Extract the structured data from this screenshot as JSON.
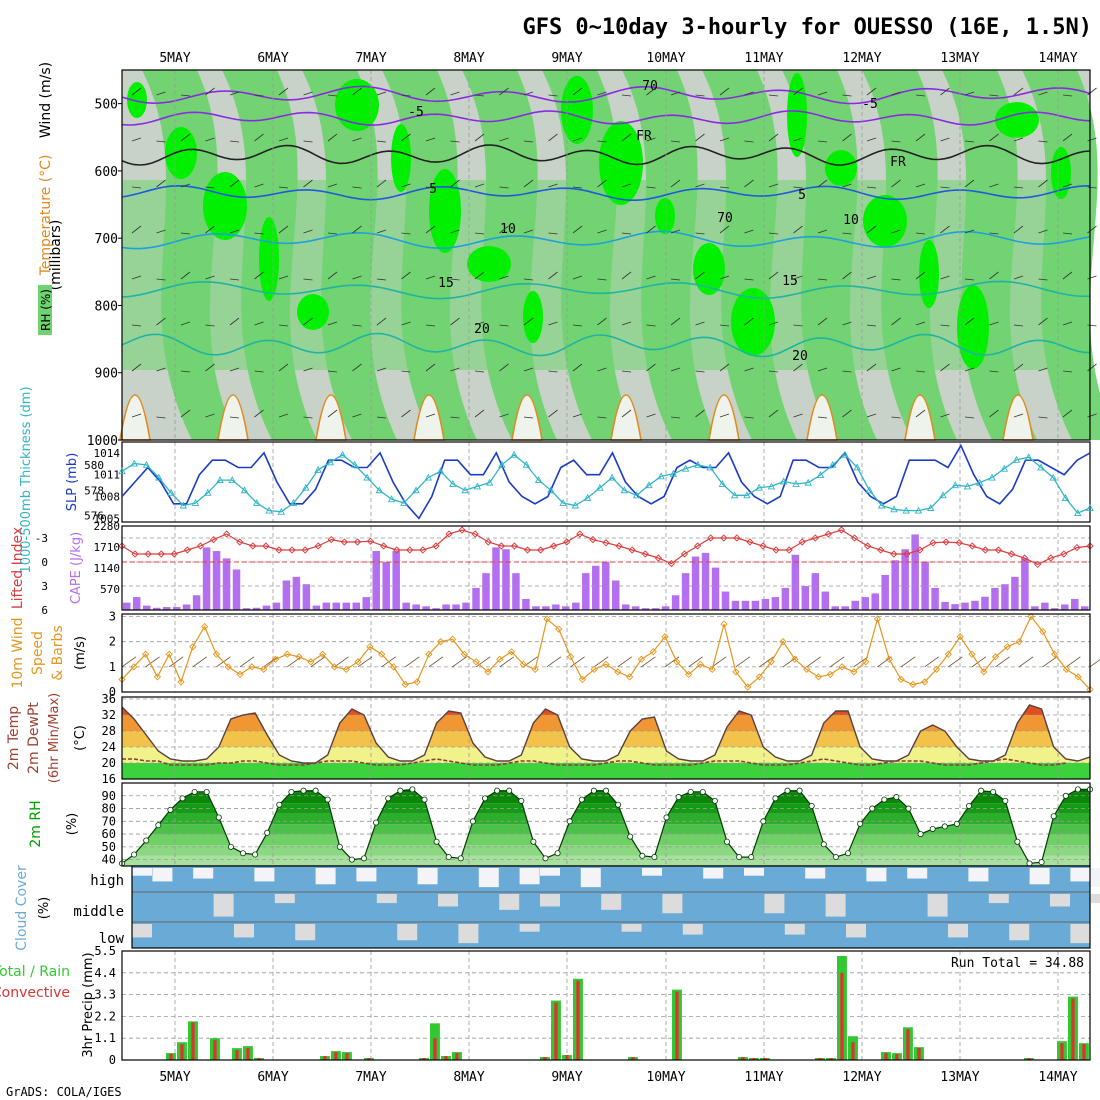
{
  "header": {
    "title": "GFS 0~10day 3-hourly for OUESSO (16E, 1.5N)",
    "credit": "GrADS: COLA/IGES"
  },
  "colors": {
    "rh_light": "#c8d2c8",
    "rh_green": "#6fd36f",
    "rh_bright": "#00f000",
    "temp_purple": "#8a2be2",
    "temp_blue": "#1e5adc",
    "temp_cyan": "#1ea0dc",
    "temp_teal": "#20b4a0",
    "temp_orange": "#e08a20",
    "slp": "#1a3cc8",
    "thickness": "#32b4c8",
    "lifted_index": "#dc3c3c",
    "cape": "#b46ef0",
    "wind_speed": "#e6961e",
    "dewpoint": "#8a3c3c",
    "rh2m": "#00a000",
    "cloud_cover": "#6aaad6",
    "cloud_clear": "#dcdcdc",
    "precip_total": "#32c832",
    "precip_convective": "#e03232"
  },
  "x_axis": {
    "date_labels": [
      "5MAY",
      "6MAY",
      "7MAY",
      "8MAY",
      "9MAY",
      "10MAY",
      "11MAY",
      "12MAY",
      "13MAY",
      "14MAY"
    ]
  },
  "chart_data": [
    {
      "type": "heatmap",
      "panel": "upper-air",
      "ylabel": "(millibars)",
      "legend_labels": [
        "RH (%)",
        "Temperature (°C)",
        "Wind (m/s)"
      ],
      "yticks": [
        500,
        600,
        700,
        800,
        900,
        1000
      ],
      "ylim": [
        1000,
        450
      ],
      "contour_labels": [
        {
          "text": "-5"
        },
        {
          "text": "-5"
        },
        {
          "text": "FR"
        },
        {
          "text": "FR"
        },
        {
          "text": "5"
        },
        {
          "text": "5"
        },
        {
          "text": "10"
        },
        {
          "text": "10"
        },
        {
          "text": "15"
        },
        {
          "text": "15"
        },
        {
          "text": "20"
        },
        {
          "text": "20"
        },
        {
          "text": "70"
        },
        {
          "text": "70"
        }
      ]
    },
    {
      "type": "line",
      "panel": "slp-thickness",
      "ylabel_left": "1000-500mb Thickness (dm)",
      "ylabel_right": "SLP (mb)",
      "left_ticks": [
        "580",
        "578",
        "576"
      ],
      "left_range": [
        575.5,
        581.8
      ],
      "right_ticks": [
        "1014",
        "1011",
        "1008",
        "1005"
      ],
      "right_range": [
        1004.5,
        1015.5
      ],
      "series": [
        {
          "name": "SLP (mb)",
          "values": [
            1008,
            1010,
            1012,
            1010,
            1007,
            1007,
            1011,
            1013,
            1013,
            1012,
            1012,
            1014,
            1010,
            1007,
            1007,
            1009,
            1013,
            1013,
            1012,
            1012,
            1014,
            1010,
            1007,
            1005,
            1008,
            1013,
            1013,
            1011,
            1011,
            1014,
            1010,
            1008,
            1007,
            1008,
            1012,
            1013,
            1011,
            1011,
            1014,
            1010,
            1008,
            1007,
            1008,
            1012,
            1013,
            1012,
            1012,
            1014,
            1010,
            1008,
            1007,
            1008,
            1013,
            1013,
            1012,
            1012,
            1014,
            1010,
            1008,
            1007,
            1008,
            1013,
            1013,
            1013,
            1012,
            1015,
            1011,
            1008,
            1007,
            1009,
            1013,
            1013,
            1012,
            1011,
            1013,
            1014
          ]
        },
        {
          "name": "Thickness (dm)",
          "values": [
            579.5,
            580.1,
            580.0,
            579.0,
            577.8,
            576.8,
            577.0,
            577.8,
            578.8,
            578.8,
            578.0,
            577.0,
            576.4,
            576.3,
            577.0,
            578.2,
            579.6,
            580.2,
            580.8,
            580.0,
            579.0,
            578.0,
            577.3,
            577.0,
            578.0,
            579.0,
            579.5,
            578.5,
            578.0,
            578.3,
            578.6,
            580.0,
            580.8,
            580.0,
            578.8,
            578.0,
            577.0,
            576.8,
            577.4,
            578.2,
            579.0,
            578.0,
            577.6,
            578.4,
            579.1,
            579.3,
            579.7,
            580.0,
            579.8,
            578.5,
            577.6,
            577.6,
            578.2,
            578.3,
            578.7,
            578.5,
            578.6,
            579.2,
            580.0,
            580.8,
            579.8,
            578.0,
            576.8,
            576.5,
            576.4,
            576.4,
            576.6,
            577.6,
            578.4,
            578.3,
            578.6,
            579.0,
            579.7,
            580.4,
            580.6,
            579.8,
            579.0,
            577.4,
            576.2,
            576.6
          ]
        }
      ]
    },
    {
      "type": "bar",
      "panel": "instability",
      "ylabel_left": "Lifted Index",
      "ylabel_right": "CAPE (J/kg)",
      "left_ticks": [
        "-3",
        "0",
        "3",
        "6"
      ],
      "left_range": [
        6,
        -4.5
      ],
      "right_ticks": [
        "2280",
        "1710",
        "1140",
        "570"
      ],
      "right_range": [
        0,
        2280
      ],
      "series": [
        {
          "name": "CAPE (J/kg)",
          "values": [
            200,
            350,
            120,
            60,
            80,
            80,
            150,
            400,
            1700,
            1600,
            1400,
            1100,
            50,
            60,
            120,
            200,
            800,
            900,
            700,
            120,
            200,
            200,
            200,
            200,
            350,
            1600,
            1300,
            1600,
            200,
            150,
            100,
            50,
            150,
            150,
            200,
            600,
            1000,
            1700,
            1650,
            1000,
            300,
            100,
            100,
            150,
            100,
            200,
            1000,
            1200,
            1300,
            800,
            150,
            100,
            50,
            50,
            100,
            400,
            1000,
            1450,
            1550,
            1150,
            500,
            250,
            250,
            250,
            300,
            350,
            600,
            1500,
            650,
            1000,
            500,
            100,
            100,
            250,
            350,
            450,
            950,
            1350,
            1650,
            2050,
            1300,
            600,
            220,
            160,
            200,
            250,
            360,
            600,
            700,
            900,
            1400,
            100,
            200,
            50,
            150,
            300,
            100
          ]
        },
        {
          "name": "Lifted Index",
          "values": [
            -2,
            -1,
            -1,
            -1,
            -1,
            -1.5,
            -2,
            -2.8,
            -3.5,
            -2.5,
            -2,
            -2,
            -1.5,
            -1.5,
            -1.5,
            -2,
            -2.8,
            -2.5,
            -2.5,
            -2.6,
            -2,
            -1.5,
            -1.5,
            -1.5,
            -2,
            -3.5,
            -4,
            -3.5,
            -2.5,
            -2,
            -2,
            -1.5,
            -1.5,
            -2,
            -2.5,
            -3.5,
            -2.8,
            -2.4,
            -2,
            -1.5,
            -1,
            -0.5,
            0.2,
            -1,
            -2,
            -3,
            -3,
            -3,
            -2.5,
            -2,
            -1.5,
            -1.5,
            -2.5,
            -3,
            -3.5,
            -4,
            -3,
            -2,
            -1.5,
            -1,
            -1,
            -1.5,
            -2.4,
            -2.5,
            -2.4,
            -2,
            -1.5,
            -1.5,
            -1,
            -0.5,
            0.3,
            -0.5,
            -1,
            -1.8,
            -2
          ]
        }
      ]
    },
    {
      "type": "line",
      "panel": "wind",
      "ylabel": "10m Wind Speed & Barbs (m/s)",
      "yticks": [
        "3",
        "2",
        "1",
        "0"
      ],
      "ylim": [
        0,
        3.1
      ],
      "series": [
        {
          "name": "10m Wind Speed",
          "values": [
            0.5,
            1,
            1.5,
            0.6,
            1.5,
            0.4,
            1.8,
            2.6,
            1.5,
            1,
            0.7,
            1,
            0.9,
            1.3,
            1.5,
            1.4,
            1.2,
            1.5,
            1,
            0.9,
            1.2,
            1.8,
            1.5,
            1,
            0.3,
            0.4,
            1.5,
            2,
            2.1,
            1.5,
            1.2,
            0.8,
            1.3,
            1.6,
            1.1,
            0.9,
            2.9,
            2.5,
            1.4,
            0.5,
            0.9,
            1.1,
            0.8,
            0.6,
            1.3,
            1.6,
            2.2,
            1.2,
            0.7,
            1.1,
            0.9,
            2.7,
            0.8,
            0.2,
            0.6,
            1.2,
            2,
            1.3,
            0.9,
            0.6,
            0.7,
            1,
            0.8,
            1.2,
            2.9,
            1.3,
            0.5,
            0.3,
            0.4,
            0.9,
            1.5,
            2.2,
            1.5,
            0.8,
            1.4,
            1.8,
            2,
            3,
            2.4,
            1.5,
            0.9,
            0.6,
            0.1
          ]
        }
      ]
    },
    {
      "type": "area",
      "panel": "temperature",
      "ylabel": "2m Temp 2m DewPt (6hr Min/Max) (°C)",
      "yticks": [
        "36",
        "32",
        "28",
        "24",
        "20",
        "16"
      ],
      "ylim": [
        16,
        36.5
      ],
      "series": [
        {
          "name": "2m Temp",
          "values": [
            34,
            31,
            27,
            23,
            21,
            20.5,
            20.5,
            21,
            24,
            31,
            32,
            32.5,
            27,
            22,
            20.5,
            20,
            20,
            22,
            30,
            33.5,
            32,
            25,
            21.5,
            20.5,
            20.5,
            22,
            30,
            33,
            32.5,
            25,
            21.5,
            20.5,
            20.5,
            22,
            30,
            33.5,
            32,
            24,
            21,
            20.5,
            20.5,
            22,
            28,
            31,
            31.5,
            23,
            21,
            20.5,
            20.5,
            22,
            29,
            33,
            32,
            24,
            21.5,
            20.5,
            20.5,
            22,
            30,
            33,
            33,
            24,
            21,
            20.5,
            20.5,
            22,
            28,
            29.5,
            28,
            24,
            21,
            20.5,
            20.5,
            22,
            30,
            34.5,
            33.5,
            24,
            21,
            20.5,
            21.5
          ]
        },
        {
          "name": "2m DewPt",
          "values": [
            21,
            21,
            20.5,
            20.5,
            19.5,
            19.5,
            19.5,
            19.5,
            20,
            20,
            20.5,
            20.5,
            20,
            19.5,
            19.5,
            19.5,
            20,
            20.5,
            20.5,
            20.5,
            20,
            19.5,
            19.5,
            19.5,
            20,
            20.5,
            21,
            20.5,
            20,
            19.5,
            19.5,
            19.5,
            20,
            20.5,
            20.5,
            20,
            19.5,
            19.5,
            19.5,
            19.5,
            20,
            20.5,
            20.5,
            20,
            19.5,
            19.5,
            19.5,
            19.5,
            20,
            20.5,
            20.5,
            20.5,
            20,
            19.5,
            19.5,
            19.5,
            20,
            20.5,
            21,
            20.5,
            20,
            19.5,
            19.5,
            20,
            20.5,
            20.5,
            20.5,
            20,
            19.5,
            19.5,
            19.5,
            20,
            20.5,
            21,
            20.5,
            20,
            19.5,
            19.5,
            20
          ]
        }
      ]
    },
    {
      "type": "area",
      "panel": "humidity",
      "ylabel": "2m RH (%)",
      "yticks": [
        "90",
        "80",
        "70",
        "60",
        "50",
        "40"
      ],
      "ylim": [
        35,
        100
      ],
      "series": [
        {
          "name": "2m RH",
          "values": [
            37,
            44,
            55,
            67,
            79,
            88,
            93,
            93,
            73,
            50,
            45,
            44,
            61,
            83,
            93,
            94,
            94,
            87,
            50,
            40,
            41,
            69,
            88,
            94,
            95,
            87,
            54,
            42,
            41,
            70,
            88,
            94,
            94,
            86,
            54,
            41,
            45,
            70,
            87,
            94,
            94,
            83,
            58,
            43,
            42,
            73,
            89,
            93,
            93,
            86,
            54,
            42,
            42,
            70,
            88,
            94,
            94,
            82,
            52,
            42,
            45,
            68,
            80,
            87,
            89,
            80,
            60,
            64,
            66,
            68,
            82,
            94,
            93,
            86,
            54,
            37,
            38,
            74,
            90,
            95,
            95
          ]
        }
      ]
    },
    {
      "type": "heatmap",
      "panel": "cloud-cover",
      "ylabel": "Cloud Cover (%)",
      "row_labels": [
        "high",
        "middle",
        "low"
      ]
    },
    {
      "type": "bar",
      "panel": "precipitation",
      "ylabel": "3hr Precip (mm)",
      "legend_labels": [
        "Total / Rain",
        "Convective"
      ],
      "yticks": [
        "5.5",
        "4.4",
        "3.3",
        "2.2",
        "1.1",
        "0"
      ],
      "ylim": [
        0,
        5.5
      ],
      "run_total": "Run Total = 34.88",
      "series": [
        {
          "name": "Total / Rain",
          "values": [
            0,
            0,
            0,
            0,
            0.35,
            0.9,
            1.95,
            0,
            1.1,
            0,
            0.6,
            0.7,
            0.1,
            0,
            0,
            0,
            0,
            0,
            0.2,
            0.45,
            0.4,
            0,
            0.1,
            0,
            0,
            0,
            0,
            0.1,
            1.85,
            0.2,
            0.4,
            0,
            0,
            0,
            0,
            0,
            0,
            0,
            0.15,
            3,
            0.25,
            4.1,
            0,
            0,
            0,
            0,
            0.15,
            0,
            0,
            0,
            3.55,
            0,
            0,
            0,
            0,
            0,
            0.15,
            0.1,
            0.1,
            0,
            0,
            0,
            0,
            0.1,
            0.1,
            5.25,
            1.2,
            0,
            0,
            0.4,
            0.35,
            1.65,
            0.65,
            0,
            0,
            0,
            0,
            0,
            0,
            0,
            0,
            0,
            0.1,
            0,
            0,
            0.95,
            3.2,
            0.85
          ]
        },
        {
          "name": "Convective",
          "values": [
            0,
            0,
            0,
            0,
            0.3,
            0.8,
            1.9,
            0,
            1,
            0,
            0.5,
            0.6,
            0.1,
            0,
            0,
            0,
            0,
            0,
            0.2,
            0.4,
            0.35,
            0,
            0.1,
            0,
            0,
            0,
            0,
            0.1,
            1.1,
            0.2,
            0.35,
            0,
            0,
            0,
            0,
            0,
            0,
            0,
            0.15,
            2.9,
            0.25,
            4,
            0,
            0,
            0,
            0,
            0.15,
            0,
            0,
            0,
            3.45,
            0,
            0,
            0,
            0,
            0,
            0.15,
            0.1,
            0.1,
            0,
            0,
            0,
            0,
            0.1,
            0.1,
            4.4,
            0.9,
            0,
            0,
            0.35,
            0.3,
            1.55,
            0.6,
            0,
            0,
            0,
            0,
            0,
            0,
            0,
            0,
            0,
            0.1,
            0,
            0,
            0.85,
            3.1,
            0.8
          ]
        }
      ]
    }
  ]
}
